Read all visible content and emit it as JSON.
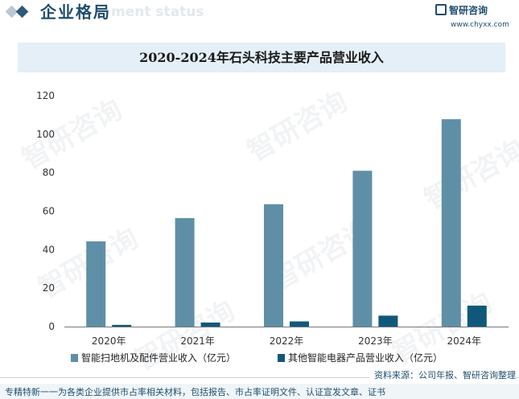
{
  "header": {
    "section_title": "企业格局",
    "section_watermark": "ment status",
    "brand_name": "智研咨询",
    "brand_url": "www.chyxx.com"
  },
  "watermark_text": "智研咨询",
  "chart_data": {
    "type": "bar",
    "title": "2020-2024年石头科技主要产品营业收入",
    "xlabel": "",
    "ylabel": "",
    "categories": [
      "2020年",
      "2021年",
      "2022年",
      "2023年",
      "2024年"
    ],
    "y_ticks": [
      "0",
      "20",
      "40",
      "60",
      "80",
      "100",
      "120"
    ],
    "ylim": [
      0,
      120
    ],
    "grid": false,
    "legend_position": "bottom",
    "series": [
      {
        "name": "智能扫地机及配件营业收入（亿元）",
        "color": "#5f8fa6",
        "values": [
          44.3,
          56.4,
          63.6,
          81.0,
          107.8
        ]
      },
      {
        "name": "其他智能电器产品营业收入（亿元）",
        "color": "#10587a",
        "values": [
          0.9,
          2.1,
          2.7,
          5.7,
          10.9
        ]
      }
    ]
  },
  "source": "资料来源：公司年报、智研咨询整理",
  "footer": "专精特新一一为各类企业提供市占率相关材料，包括报告、市占率证明文件、认证宣发文章、证书"
}
